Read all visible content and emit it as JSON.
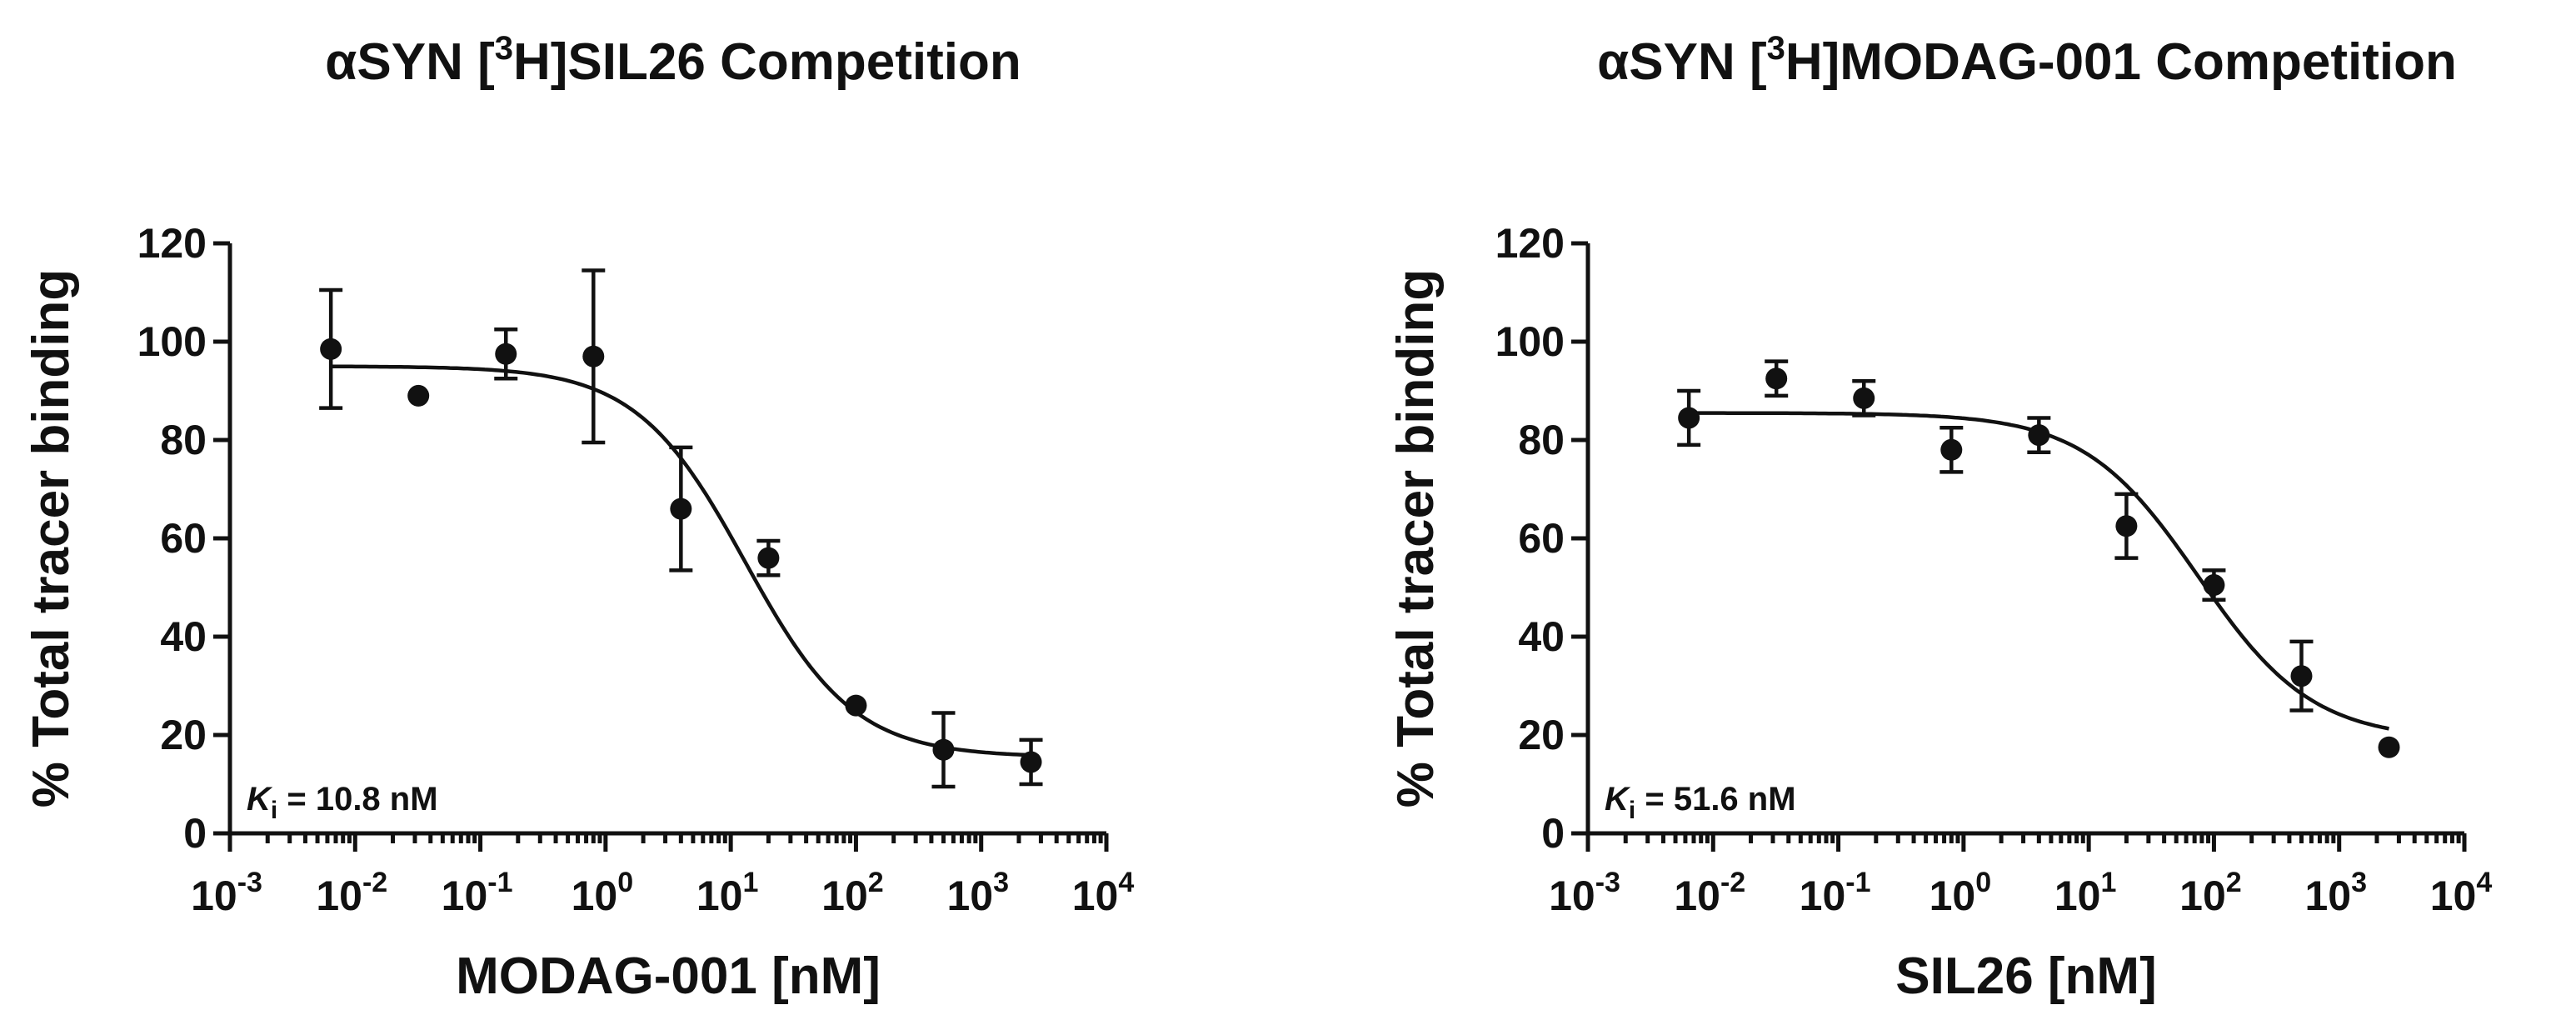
{
  "chart_data": [
    {
      "type": "scatter",
      "title_prefix": "αSYN [",
      "title_sup": "3",
      "title_suffix": "H]SIL26 Competition",
      "xlabel": "MODAG-001 [nM]",
      "ylabel": "% Total tracer binding",
      "xscale": "log10",
      "xlim_exp": [
        -3,
        4
      ],
      "ylim": [
        0,
        120
      ],
      "y_ticks": [
        0,
        20,
        40,
        60,
        80,
        100,
        120
      ],
      "y_tick_labels": [
        "0",
        "20",
        "40",
        "60",
        "80",
        "100",
        "120"
      ],
      "x_tick_exponents": [
        -3,
        -2,
        -1,
        0,
        1,
        2,
        3,
        4
      ],
      "x_tick_labels": [
        {
          "base": "10",
          "exp": "-3"
        },
        {
          "base": "10",
          "exp": "-2"
        },
        {
          "base": "10",
          "exp": "-1"
        },
        {
          "base": "10",
          "exp": "0"
        },
        {
          "base": "10",
          "exp": "1"
        },
        {
          "base": "10",
          "exp": "2"
        },
        {
          "base": "10",
          "exp": "3"
        },
        {
          "base": "10",
          "exp": "4"
        }
      ],
      "annotation": {
        "prefix": "K",
        "sub": "i",
        "suffix": " = 10.8 nM"
      },
      "points": [
        {
          "x": 0.0064,
          "y": 98.5,
          "err": 12
        },
        {
          "x": 0.032,
          "y": 89,
          "err": 0
        },
        {
          "x": 0.16,
          "y": 97.5,
          "err": 5
        },
        {
          "x": 0.8,
          "y": 97,
          "err": 17.5
        },
        {
          "x": 4,
          "y": 66,
          "err": 12.5
        },
        {
          "x": 20,
          "y": 56,
          "err": 3.5
        },
        {
          "x": 100,
          "y": 26,
          "err": 0
        },
        {
          "x": 500,
          "y": 17,
          "err": 7.5
        },
        {
          "x": 2500,
          "y": 14.5,
          "err": 4.5
        }
      ],
      "fit": {
        "top": 95,
        "bottom": 15.5,
        "ic50": 13,
        "hill": 1.0
      }
    },
    {
      "type": "scatter",
      "title_prefix": "αSYN [",
      "title_sup": "3",
      "title_suffix": "H]MODAG-001 Competition",
      "xlabel": "SIL26 [nM]",
      "ylabel": "% Total tracer binding",
      "xscale": "log10",
      "xlim_exp": [
        -3,
        4
      ],
      "ylim": [
        0,
        120
      ],
      "y_ticks": [
        0,
        20,
        40,
        60,
        80,
        100,
        120
      ],
      "y_tick_labels": [
        "0",
        "20",
        "40",
        "60",
        "80",
        "100",
        "120"
      ],
      "x_tick_exponents": [
        -3,
        -2,
        -1,
        0,
        1,
        2,
        3,
        4
      ],
      "x_tick_labels": [
        {
          "base": "10",
          "exp": "-3"
        },
        {
          "base": "10",
          "exp": "-2"
        },
        {
          "base": "10",
          "exp": "-1"
        },
        {
          "base": "10",
          "exp": "0"
        },
        {
          "base": "10",
          "exp": "1"
        },
        {
          "base": "10",
          "exp": "2"
        },
        {
          "base": "10",
          "exp": "3"
        },
        {
          "base": "10",
          "exp": "4"
        }
      ],
      "annotation": {
        "prefix": "K",
        "sub": "i",
        "suffix": " = 51.6 nM"
      },
      "points": [
        {
          "x": 0.0064,
          "y": 84.5,
          "err": 5.5
        },
        {
          "x": 0.032,
          "y": 92.5,
          "err": 3.5
        },
        {
          "x": 0.16,
          "y": 88.5,
          "err": 3.5
        },
        {
          "x": 0.8,
          "y": 78,
          "err": 4.5
        },
        {
          "x": 4,
          "y": 81,
          "err": 3.5
        },
        {
          "x": 20,
          "y": 62.5,
          "err": 6.5
        },
        {
          "x": 100,
          "y": 50.5,
          "err": 3
        },
        {
          "x": 500,
          "y": 32,
          "err": 7
        },
        {
          "x": 2500,
          "y": 17.5,
          "err": 0
        }
      ],
      "fit": {
        "top": 85.5,
        "bottom": 19,
        "ic50": 75,
        "hill": 0.95
      }
    }
  ]
}
